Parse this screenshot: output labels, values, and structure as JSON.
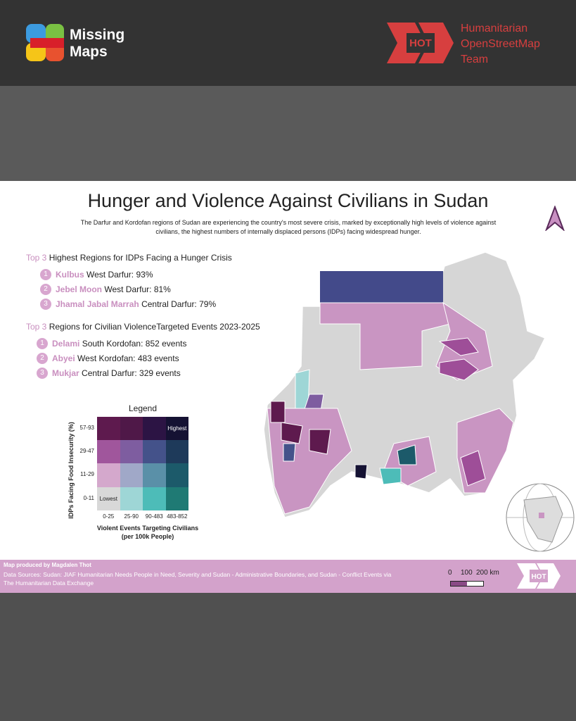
{
  "header": {
    "brand_left": [
      "Missing",
      "Maps"
    ],
    "brand_right": [
      "Humanitarian",
      "OpenStreetMap",
      "Team"
    ],
    "badge": "HOT"
  },
  "title": "Hunger and Violence Against Civilians in Sudan",
  "subtitle": [
    "The Darfur and Kordofan regions of Sudan are experiencing the country's most severe crisis, marked by exceptionally high levels of violence against",
    "civilians, the highest numbers of internally displaced persons (IDPs) facing  widespread hunger."
  ],
  "hunger_list": {
    "prefix": "Top 3",
    "heading": "Highest Regions for IDPs Facing a Hunger Crisis",
    "items": [
      {
        "rank": "1",
        "name": "Kulbus",
        "detail": "West Darfur: 93%"
      },
      {
        "rank": "2",
        "name": "Jebel Moon",
        "detail": "West Darfur: 81%"
      },
      {
        "rank": "3",
        "name": "Jhamal Jabal Marrah",
        "detail": "Central Darfur: 79%"
      }
    ]
  },
  "violence_list": {
    "prefix": "Top 3",
    "heading": "Regions for Civilian ViolenceTargeted Events 2023-2025",
    "items": [
      {
        "rank": "1",
        "name": "Delami",
        "detail": "South Kordofan: 852 events"
      },
      {
        "rank": "2",
        "name": "Abyei",
        "detail": "West Kordofan: 483 events"
      },
      {
        "rank": "3",
        "name": "Mukjar",
        "detail": "Central Darfur: 329 events"
      }
    ]
  },
  "legend": {
    "title": "Legend",
    "y_label": "IDPs Facing Food Insecurity (%)",
    "y_classes": [
      "57-93",
      "29-47",
      "11-29",
      "0-11"
    ],
    "x_classes": [
      "0-25",
      "25-90",
      "90-483",
      "483-852"
    ],
    "x_label": [
      "Violent Events Targeting Civilians",
      "(per 100k People)"
    ],
    "highest": "Highest",
    "lowest": "Lowest"
  },
  "footer": {
    "producer": "Map produced by Magdalen Thot",
    "sources": [
      "Data Sources: Sudan: JIAF Humanitarian Needs People in Need, Severity and Sudan - Administrative Boundaries,  and Sudan - Conflict Events via",
      "The Humanitarian Data Exchange"
    ],
    "scale_labels": [
      "0",
      "100",
      "200 km"
    ],
    "badge": "HOT"
  }
}
